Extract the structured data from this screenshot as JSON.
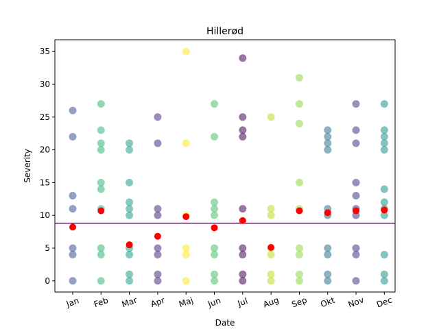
{
  "chart_data": {
    "type": "scatter",
    "title": "Hillerød",
    "xlabel": "Date",
    "ylabel": "Severity",
    "categories": [
      "Jan",
      "Feb",
      "Mar",
      "Apr",
      "Maj",
      "Jun",
      "Jul",
      "Aug",
      "Sep",
      "Okt",
      "Nov",
      "Dec"
    ],
    "ylim": [
      -1.7,
      36.8
    ],
    "yticks": [
      0,
      5,
      10,
      15,
      20,
      25,
      30,
      35
    ],
    "grid": false,
    "reference_line": {
      "y": 8.8,
      "color": "#800080"
    },
    "mean_color": "#ff0000",
    "means": [
      8.2,
      10.7,
      5.5,
      6.8,
      9.8,
      8.1,
      9.2,
      5.1,
      10.7,
      10.4,
      10.7,
      10.8
    ],
    "months": [
      {
        "color": "#3b528b",
        "values": [
          26,
          22,
          13,
          11,
          5,
          4,
          0
        ]
      },
      {
        "color": "#35b779",
        "values": [
          27,
          23,
          21,
          20,
          15,
          14,
          11,
          5,
          4,
          0
        ]
      },
      {
        "color": "#1f9e89",
        "values": [
          21,
          20,
          15,
          12,
          11,
          10,
          5,
          4,
          1,
          0
        ]
      },
      {
        "color": "#472d7b",
        "values": [
          25,
          21,
          11,
          10,
          5,
          4,
          1,
          0
        ]
      },
      {
        "color": "#fde725",
        "values": [
          35,
          21,
          10,
          5,
          4,
          0
        ]
      },
      {
        "color": "#4ac16d",
        "values": [
          27,
          22,
          12,
          11,
          10,
          5,
          4,
          1,
          0
        ]
      },
      {
        "color": "#440154",
        "values": [
          34,
          25,
          23,
          22,
          11,
          5,
          4,
          1,
          0
        ]
      },
      {
        "color": "#b8de29",
        "values": [
          25,
          11,
          10,
          5,
          4,
          1,
          0
        ]
      },
      {
        "color": "#90d743",
        "values": [
          31,
          27,
          24,
          15,
          11,
          5,
          4,
          1,
          0
        ]
      },
      {
        "color": "#2c728e",
        "values": [
          23,
          22,
          21,
          20,
          11,
          10,
          5,
          4,
          1,
          0
        ]
      },
      {
        "color": "#443983",
        "values": [
          27,
          23,
          21,
          15,
          13,
          11,
          10,
          5,
          4,
          0
        ]
      },
      {
        "color": "#21918c",
        "values": [
          27,
          23,
          22,
          21,
          20,
          14,
          12,
          11,
          10,
          4,
          1,
          0
        ]
      }
    ]
  }
}
